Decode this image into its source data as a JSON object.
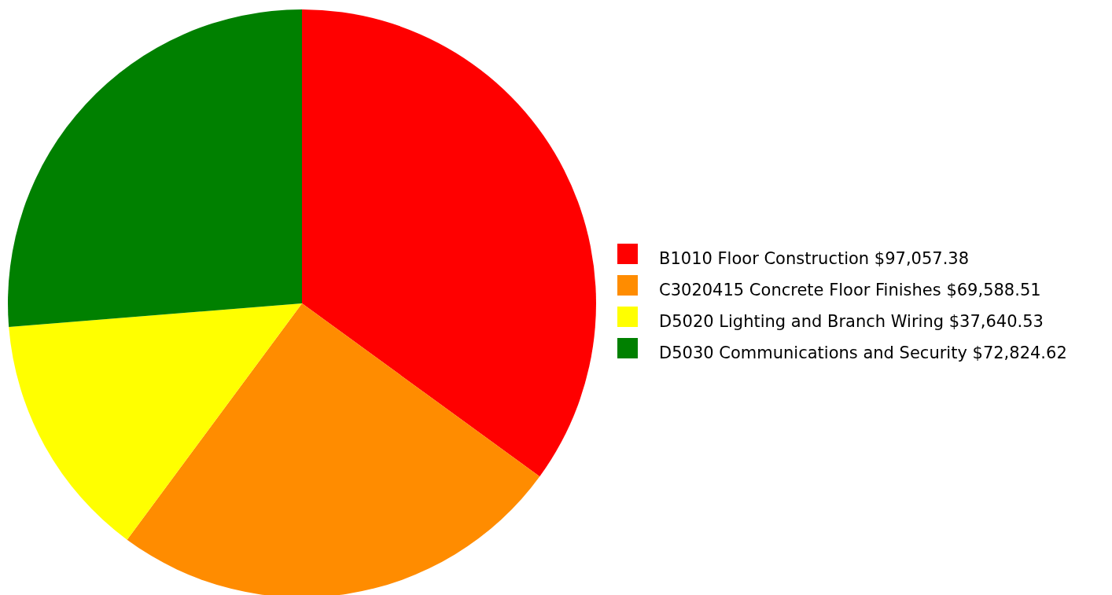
{
  "chart_data": {
    "type": "pie",
    "categories": [
      "B1010 Floor Construction $97,057.38",
      "C3020415 Concrete Floor Finishes $69,588.51",
      "D5020 Lighting and Branch Wiring $37,640.53",
      "D5030 Communications and Security $72,824.62"
    ],
    "values": [
      97057.38,
      69588.51,
      37640.53,
      72824.62
    ],
    "colors": [
      "#ff0000",
      "#ff8c00",
      "#ffff00",
      "#008000"
    ],
    "legend": "right"
  }
}
